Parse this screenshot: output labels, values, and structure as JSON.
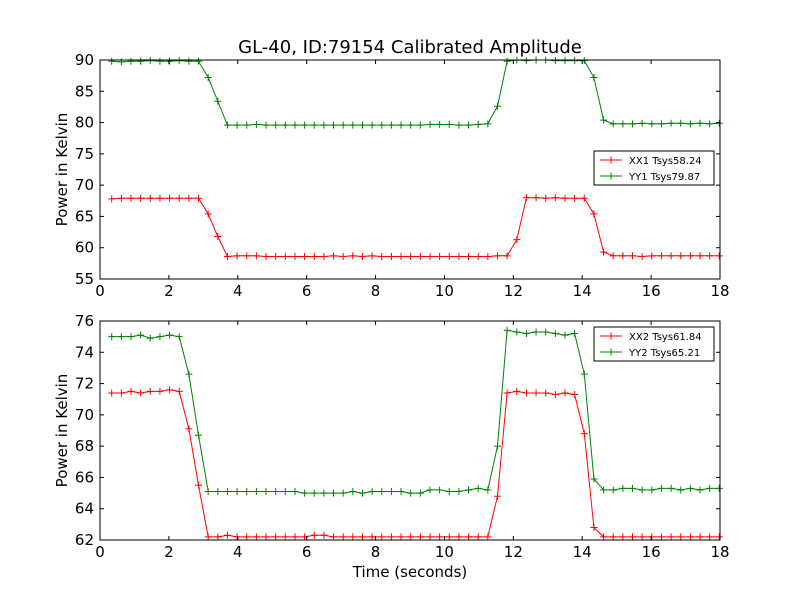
{
  "title": "GL-40, ID:79154 Calibrated Amplitude",
  "chart_data": [
    {
      "type": "line",
      "title": "GL-40, ID:79154 Calibrated Amplitude",
      "xlabel": "",
      "ylabel": "Power in Kelvin",
      "xlim": [
        0,
        18
      ],
      "ylim": [
        55,
        90
      ],
      "xticks": [
        "0",
        "2",
        "4",
        "6",
        "8",
        "10",
        "12",
        "14",
        "16",
        "18"
      ],
      "yticks": [
        "55",
        "60",
        "65",
        "70",
        "75",
        "80",
        "85",
        "90"
      ],
      "grid": false,
      "legend_position": "center-right",
      "x": [
        0.34,
        0.62,
        0.9,
        1.18,
        1.46,
        1.74,
        2.02,
        2.3,
        2.58,
        2.86,
        3.14,
        3.42,
        3.7,
        3.98,
        4.26,
        4.54,
        4.82,
        5.1,
        5.38,
        5.66,
        5.94,
        6.22,
        6.5,
        6.78,
        7.06,
        7.34,
        7.62,
        7.9,
        8.18,
        8.46,
        8.74,
        9.02,
        9.3,
        9.58,
        9.86,
        10.14,
        10.42,
        10.7,
        10.98,
        11.26,
        11.54,
        11.82,
        12.1,
        12.38,
        12.66,
        12.94,
        13.22,
        13.5,
        13.78,
        14.06,
        14.34,
        14.62,
        14.9,
        15.18,
        15.46,
        15.74,
        16.02,
        16.3,
        16.58,
        16.86,
        17.14,
        17.42,
        17.7,
        17.98
      ],
      "series": [
        {
          "name": "XX1 Tsys58.24",
          "color": "#ff0000",
          "values": [
            67.8,
            67.9,
            67.9,
            67.9,
            67.9,
            67.9,
            67.9,
            67.9,
            67.9,
            67.9,
            65.4,
            61.8,
            58.6,
            58.7,
            58.7,
            58.7,
            58.6,
            58.6,
            58.6,
            58.6,
            58.6,
            58.6,
            58.6,
            58.7,
            58.6,
            58.7,
            58.6,
            58.7,
            58.6,
            58.6,
            58.6,
            58.6,
            58.6,
            58.6,
            58.6,
            58.6,
            58.6,
            58.6,
            58.6,
            58.6,
            58.7,
            58.7,
            61.3,
            68.0,
            68.0,
            67.9,
            68.0,
            67.9,
            67.9,
            67.9,
            65.4,
            59.3,
            58.7,
            58.7,
            58.7,
            58.6,
            58.7,
            58.7,
            58.7,
            58.7,
            58.7,
            58.7,
            58.7,
            58.7
          ]
        },
        {
          "name": "YY1 Tsys79.87",
          "color": "#008000",
          "values": [
            89.8,
            89.7,
            89.8,
            89.8,
            89.9,
            89.8,
            89.8,
            89.9,
            89.8,
            89.8,
            87.2,
            83.4,
            79.6,
            79.6,
            79.6,
            79.7,
            79.6,
            79.6,
            79.6,
            79.6,
            79.6,
            79.6,
            79.6,
            79.6,
            79.6,
            79.6,
            79.6,
            79.6,
            79.6,
            79.6,
            79.6,
            79.6,
            79.6,
            79.7,
            79.7,
            79.7,
            79.6,
            79.6,
            79.7,
            79.8,
            82.6,
            89.8,
            90.0,
            89.9,
            90.0,
            90.0,
            89.9,
            89.9,
            89.9,
            89.9,
            87.2,
            80.4,
            79.8,
            79.8,
            79.8,
            79.9,
            79.8,
            79.8,
            79.9,
            79.9,
            79.8,
            79.9,
            79.8,
            79.9
          ]
        }
      ]
    },
    {
      "type": "line",
      "title": "",
      "xlabel": "Time (seconds)",
      "ylabel": "Power in Kelvin",
      "xlim": [
        0,
        18
      ],
      "ylim": [
        62,
        76
      ],
      "xticks": [
        "0",
        "2",
        "4",
        "6",
        "8",
        "10",
        "12",
        "14",
        "16",
        "18"
      ],
      "yticks": [
        "62",
        "64",
        "66",
        "68",
        "70",
        "72",
        "74",
        "76"
      ],
      "grid": false,
      "legend_position": "top-right",
      "x": [
        0.34,
        0.62,
        0.9,
        1.18,
        1.46,
        1.74,
        2.02,
        2.3,
        2.58,
        2.86,
        3.14,
        3.42,
        3.7,
        3.98,
        4.26,
        4.54,
        4.82,
        5.1,
        5.38,
        5.66,
        5.94,
        6.22,
        6.5,
        6.78,
        7.06,
        7.34,
        7.62,
        7.9,
        8.18,
        8.46,
        8.74,
        9.02,
        9.3,
        9.58,
        9.86,
        10.14,
        10.42,
        10.7,
        10.98,
        11.26,
        11.54,
        11.82,
        12.1,
        12.38,
        12.66,
        12.94,
        13.22,
        13.5,
        13.78,
        14.06,
        14.34,
        14.62,
        14.9,
        15.18,
        15.46,
        15.74,
        16.02,
        16.3,
        16.58,
        16.86,
        17.14,
        17.42,
        17.7,
        17.98
      ],
      "series": [
        {
          "name": "XX2 Tsys61.84",
          "color": "#ff0000",
          "values": [
            71.4,
            71.4,
            71.5,
            71.4,
            71.5,
            71.5,
            71.6,
            71.5,
            69.1,
            65.5,
            62.2,
            62.2,
            62.3,
            62.2,
            62.2,
            62.2,
            62.2,
            62.2,
            62.2,
            62.2,
            62.2,
            62.3,
            62.3,
            62.2,
            62.2,
            62.2,
            62.2,
            62.2,
            62.2,
            62.2,
            62.2,
            62.2,
            62.2,
            62.2,
            62.2,
            62.2,
            62.2,
            62.2,
            62.2,
            62.2,
            64.8,
            71.4,
            71.5,
            71.4,
            71.4,
            71.4,
            71.3,
            71.4,
            71.3,
            68.8,
            62.8,
            62.2,
            62.2,
            62.2,
            62.2,
            62.2,
            62.2,
            62.2,
            62.2,
            62.2,
            62.2,
            62.2,
            62.2,
            62.2
          ]
        },
        {
          "name": "YY2 Tsys65.21",
          "color": "#008000",
          "values": [
            75.0,
            75.0,
            75.0,
            75.1,
            74.9,
            75.0,
            75.1,
            75.0,
            72.6,
            68.7,
            65.1,
            65.1,
            65.1,
            65.1,
            65.1,
            65.1,
            65.1,
            65.1,
            65.1,
            65.1,
            65.0,
            65.0,
            65.0,
            65.0,
            65.0,
            65.1,
            65.0,
            65.1,
            65.1,
            65.1,
            65.1,
            65.0,
            65.0,
            65.2,
            65.2,
            65.1,
            65.1,
            65.2,
            65.3,
            65.2,
            68.0,
            75.4,
            75.3,
            75.2,
            75.3,
            75.3,
            75.2,
            75.1,
            75.2,
            72.6,
            65.9,
            65.2,
            65.2,
            65.3,
            65.3,
            65.2,
            65.2,
            65.3,
            65.3,
            65.2,
            65.3,
            65.2,
            65.3,
            65.3
          ]
        }
      ]
    }
  ]
}
